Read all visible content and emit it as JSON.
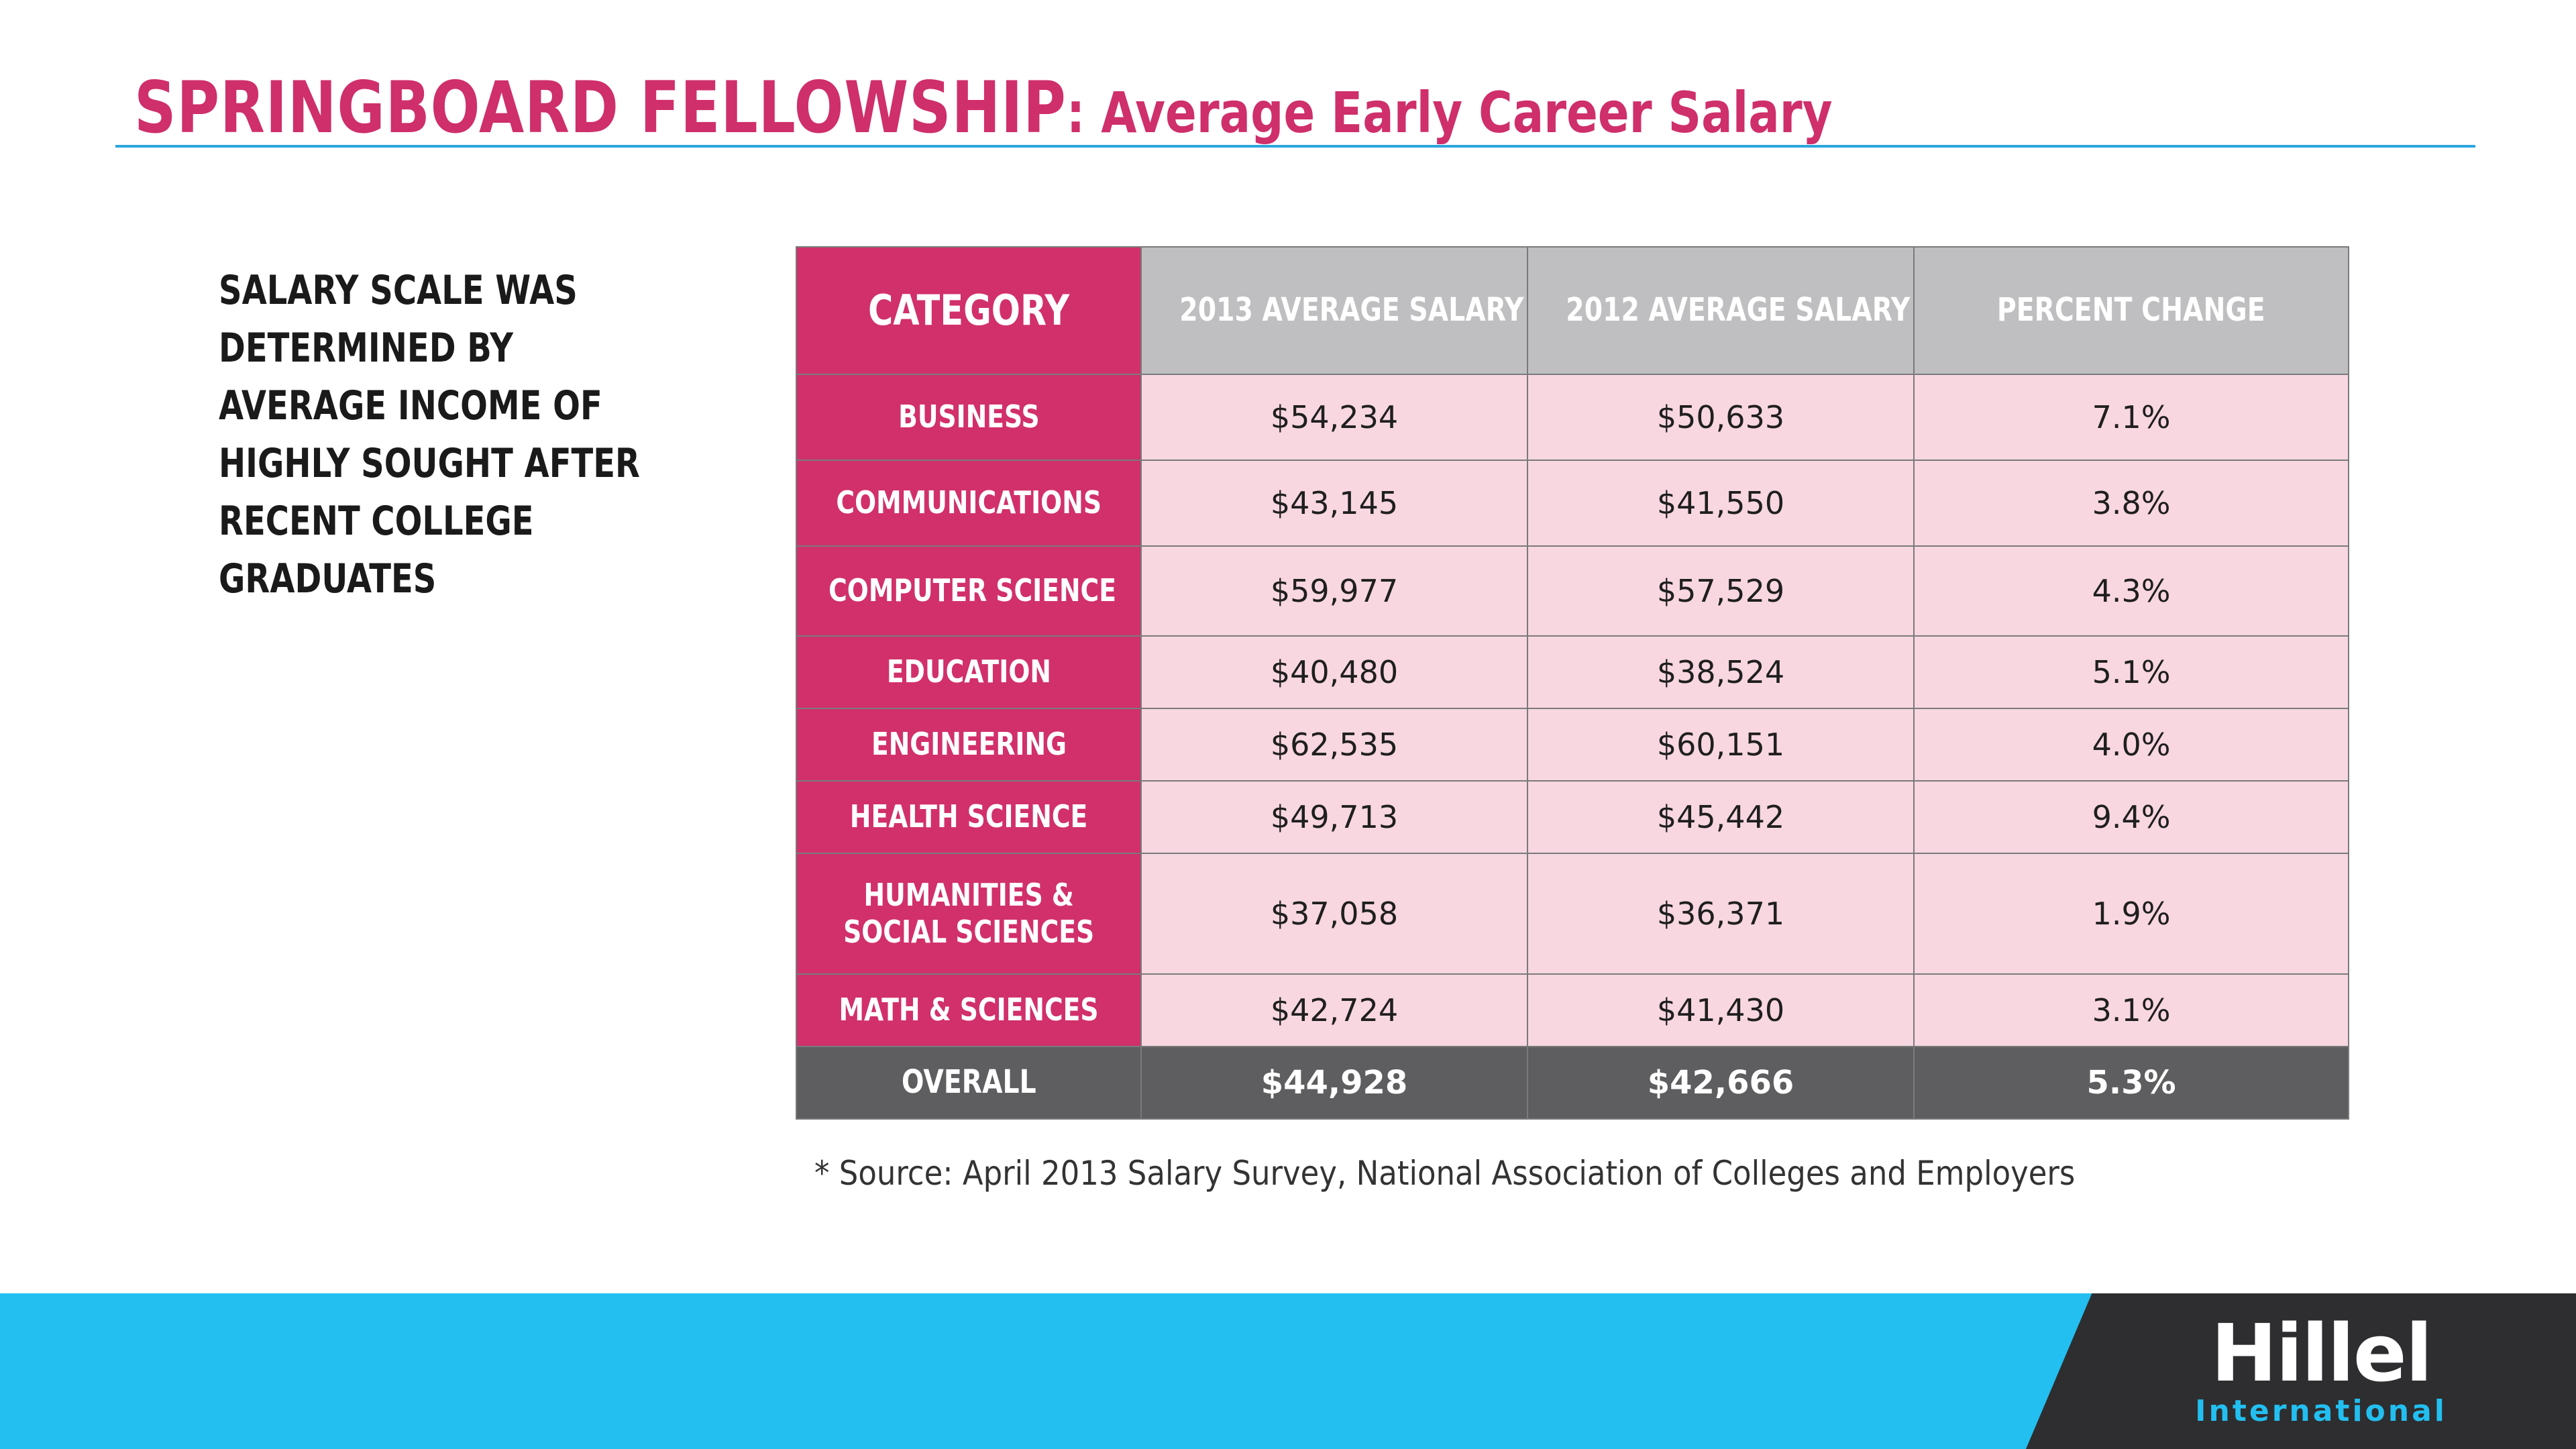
{
  "title": {
    "main": "SPRINGBOARD FELLOWSHIP",
    "sub": ": Average Early Career Salary"
  },
  "lead_text": "SALARY SCALE WAS DETERMINED BY AVERAGE INCOME OF HIGHLY SOUGHT AFTER RECENT COLLEGE GRADUATES",
  "table": {
    "headers": [
      "CATEGORY",
      "2013 AVERAGE SALARY",
      "2012 AVERAGE SALARY",
      "PERCENT CHANGE"
    ],
    "rows": [
      [
        "BUSINESS",
        "$54,234",
        "$50,633",
        "7.1%"
      ],
      [
        "COMMUNICATIONS",
        "$43,145",
        "$41,550",
        "3.8%"
      ],
      [
        "COMPUTER SCIENCE",
        "$59,977",
        "$57,529",
        "4.3%"
      ],
      [
        "EDUCATION",
        "$40,480",
        "$38,524",
        "5.1%"
      ],
      [
        "ENGINEERING",
        "$62,535",
        "$60,151",
        "4.0%"
      ],
      [
        "HEALTH SCIENCE",
        "$49,713",
        "$45,442",
        "9.4%"
      ],
      [
        "HUMANITIES &",
        "$37,058",
        "$36,371",
        "1.9%"
      ],
      [
        "MATH & SCIENCES",
        "$42,724",
        "$41,430",
        "3.1%"
      ]
    ],
    "humanities_line2": "SOCIAL SCIENCES",
    "overall": [
      "OVERALL",
      "$44,928",
      "$42,666",
      "5.3%"
    ]
  },
  "source_note": "* Source: April 2013 Salary Survey, National Association of Colleges and Employers",
  "logo": {
    "main": "Hillel",
    "sub": "International"
  },
  "colors": {
    "accent_pink": "#d1306b",
    "row_pink": "#f8d7e1",
    "header_gray": "#bfbfc1",
    "overall_gray": "#5e5e60",
    "footer_blue": "#22bff0",
    "footer_dark": "#2e2e30"
  }
}
